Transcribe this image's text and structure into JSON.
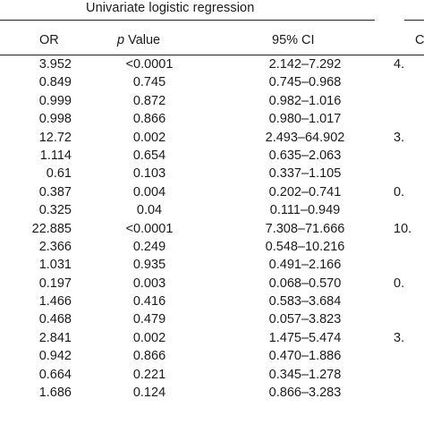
{
  "header": {
    "group_title": "Univariate logistic regression",
    "col_or": "OR",
    "col_p_italic": "p",
    "col_p_rest": " Value",
    "col_ci": "95% CI",
    "col_next_partial": "C"
  },
  "rows": [
    {
      "or": "3.952",
      "p": "<0.0001",
      "ci": "2.142–7.292",
      "next": "4."
    },
    {
      "or": "0.849",
      "p": "0.745",
      "ci": "0.745–0.968",
      "next": ""
    },
    {
      "or": "0.999",
      "p": "0.872",
      "ci": "0.982–1.016",
      "next": ""
    },
    {
      "or": "0.998",
      "p": "0.866",
      "ci": "0.980–1.017",
      "next": ""
    },
    {
      "or": "12.72",
      "p": "0.002",
      "ci": "2.493–64.902",
      "next": "3."
    },
    {
      "or": "1.114",
      "p": "0.654",
      "ci": "0.635–2.063",
      "next": ""
    },
    {
      "or": "0.61",
      "p": "0.103",
      "ci": "0.337–1.105",
      "next": ""
    },
    {
      "or": "0.387",
      "p": "0.004",
      "ci": "0.202–0.741",
      "next": "0."
    },
    {
      "or": "0.325",
      "p": "0.04",
      "ci": "0.111–0.949",
      "next": ""
    },
    {
      "or": "22.885",
      "p": "<0.0001",
      "ci": "7.308–71.666",
      "next": "10."
    },
    {
      "or": "2.366",
      "p": "0.249",
      "ci": "0.548–10.216",
      "next": ""
    },
    {
      "or": "1.031",
      "p": "0.935",
      "ci": "0.491–2.166",
      "next": ""
    },
    {
      "or": "0.197",
      "p": "0.003",
      "ci": "0.068–0.570",
      "next": "0."
    },
    {
      "or": "1.466",
      "p": "0.416",
      "ci": "0.583–3.684",
      "next": ""
    },
    {
      "or": "0.468",
      "p": "0.479",
      "ci": "0.057–3.823",
      "next": ""
    },
    {
      "or": "2.841",
      "p": "0.002",
      "ci": "1.475–5.474",
      "next": "3."
    },
    {
      "or": "0.942",
      "p": "0.866",
      "ci": "0.470–1.886",
      "next": ""
    },
    {
      "or": "0.664",
      "p": "0.221",
      "ci": "0.345–1.278",
      "next": ""
    },
    {
      "or": "1.686",
      "p": "0.124",
      "ci": "0.866–3.283",
      "next": ""
    }
  ]
}
